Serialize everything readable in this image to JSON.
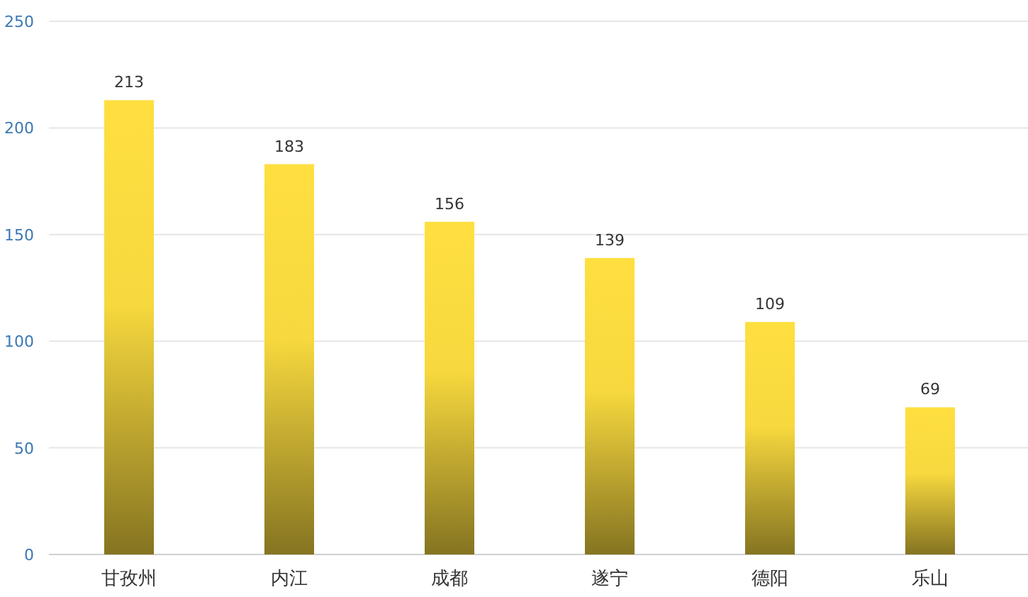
{
  "chart_data": {
    "type": "bar",
    "categories": [
      "甘孜州",
      "内江",
      "成都",
      "遂宁",
      "德阳",
      "乐山"
    ],
    "values": [
      213,
      183,
      156,
      139,
      109,
      69
    ],
    "color": "#ffdf40",
    "ylim": [
      0,
      250
    ],
    "yticks": [
      0,
      50,
      100,
      150,
      200,
      250
    ],
    "grid": "y",
    "data_labels": true
  }
}
